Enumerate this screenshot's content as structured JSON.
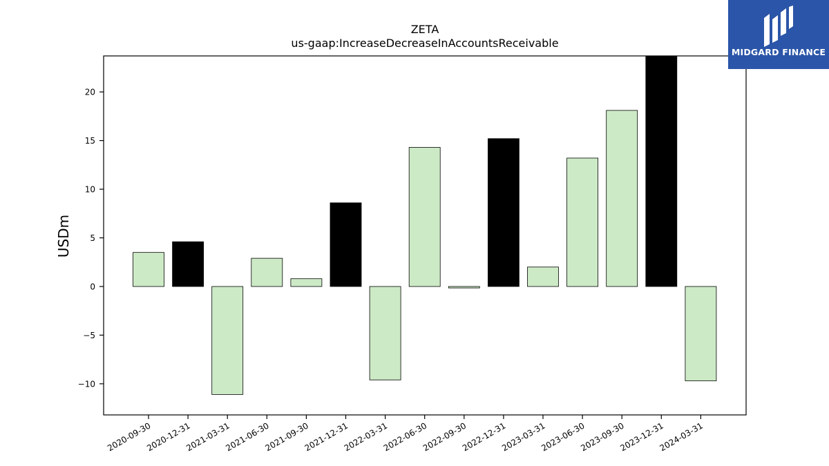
{
  "chart_data": {
    "type": "bar",
    "title": "ZETA",
    "subtitle": "us-gaap:IncreaseDecreaseInAccountsReceivable",
    "xlabel": "",
    "ylabel": "USDm",
    "ylim": [
      -13.2,
      23.7
    ],
    "yticks": [
      -10,
      -5,
      0,
      5,
      10,
      15,
      20
    ],
    "grid": false,
    "categories": [
      "2020-09-30",
      "2020-12-31",
      "2021-03-31",
      "2021-06-30",
      "2021-09-30",
      "2021-12-31",
      "2022-03-31",
      "2022-06-30",
      "2022-09-30",
      "2022-12-31",
      "2023-03-31",
      "2023-06-30",
      "2023-09-30",
      "2023-12-31",
      "2024-03-31"
    ],
    "values": [
      3.5,
      4.6,
      -11.1,
      2.9,
      0.8,
      8.6,
      -9.6,
      14.3,
      -0.15,
      15.2,
      2.0,
      13.2,
      18.1,
      23.7,
      -9.7
    ],
    "bar_kinds": [
      "quarter",
      "annual",
      "quarter",
      "quarter",
      "quarter",
      "annual",
      "quarter",
      "quarter",
      "quarter",
      "annual",
      "quarter",
      "quarter",
      "quarter",
      "annual",
      "quarter"
    ],
    "colors": {
      "quarter": "#cdeac6",
      "annual": "#000000",
      "edge": "#000000"
    }
  },
  "logo": {
    "text": "MIDGARD FINANCE",
    "background": "#2b55a8"
  }
}
